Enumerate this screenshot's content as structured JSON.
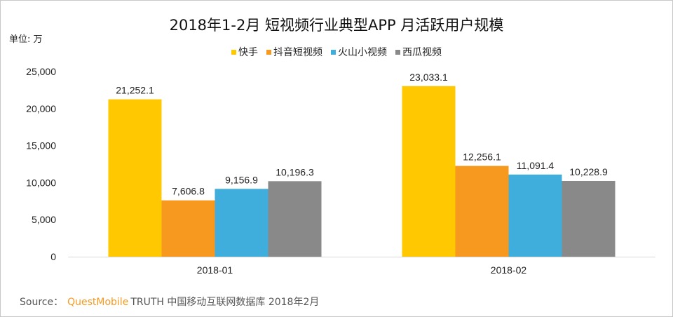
{
  "chart_data": {
    "type": "bar",
    "title": "2018年1-2月 短视频行业典型APP 月活跃用户规模",
    "ylabel": "单位: 万",
    "xlabel": "",
    "categories": [
      "2018-01",
      "2018-02"
    ],
    "series": [
      {
        "name": "快手",
        "color": "#FFC800",
        "values": [
          21252.1,
          23033.1
        ]
      },
      {
        "name": "抖音短视频",
        "color": "#F7991F",
        "values": [
          7606.8,
          12256.1
        ]
      },
      {
        "name": "火山小视频",
        "color": "#3FAEDD",
        "values": [
          9156.9,
          11091.4
        ]
      },
      {
        "name": "西瓜视频",
        "color": "#898989",
        "values": [
          10196.3,
          10228.9
        ]
      }
    ],
    "data_labels": [
      [
        "21,252.1",
        "23,033.1"
      ],
      [
        "7,606.8",
        "12,256.1"
      ],
      [
        "9,156.9",
        "11,091.4"
      ],
      [
        "10,196.3",
        "10,228.9"
      ]
    ],
    "yticks": [
      "0",
      "5,000",
      "10,000",
      "15,000",
      "20,000",
      "25,000"
    ],
    "ylim": [
      0,
      25000
    ],
    "grid": false,
    "legend": "top-center"
  },
  "source": {
    "prefix": "Source：",
    "brand": "QuestMobile",
    "text": "TRUTH 中国移动互联网数据库 2018年2月"
  }
}
